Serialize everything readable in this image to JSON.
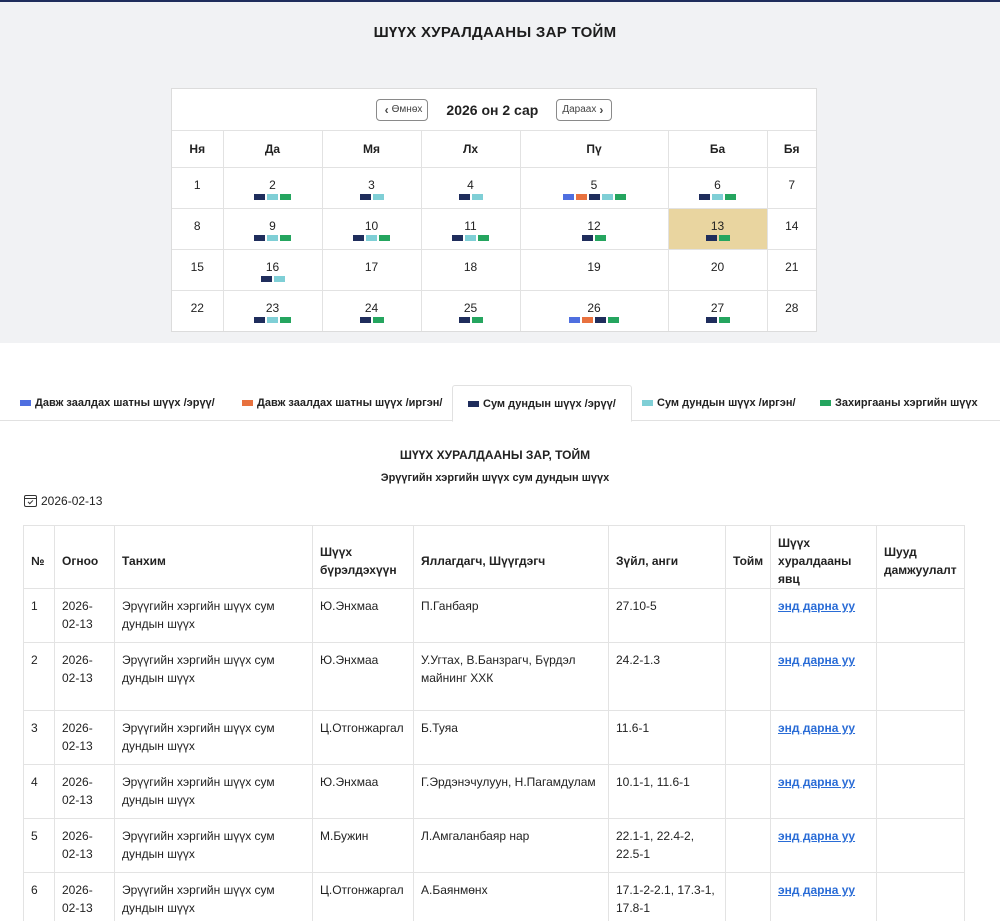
{
  "page_title": "ШҮҮХ ХУРАЛДААНЫ ЗАР ТОЙМ",
  "calendar": {
    "prev_label": "Өмнөх",
    "next_label": "Дараах",
    "month_label": "2026 он 2 сар",
    "weekdays": [
      "Ня",
      "Да",
      "Мя",
      "Лх",
      "Пү",
      "Ба",
      "Бя"
    ],
    "selected_day": "13",
    "weeks": [
      [
        {
          "d": "1",
          "m": []
        },
        {
          "d": "2",
          "m": [
            "navy",
            "teal",
            "green"
          ]
        },
        {
          "d": "3",
          "m": [
            "navy",
            "teal"
          ]
        },
        {
          "d": "4",
          "m": [
            "navy",
            "teal"
          ]
        },
        {
          "d": "5",
          "m": [
            "blue",
            "orange",
            "navy",
            "teal",
            "green"
          ]
        },
        {
          "d": "6",
          "m": [
            "navy",
            "teal",
            "green"
          ]
        },
        {
          "d": "7",
          "m": []
        }
      ],
      [
        {
          "d": "8",
          "m": []
        },
        {
          "d": "9",
          "m": [
            "navy",
            "teal",
            "green"
          ]
        },
        {
          "d": "10",
          "m": [
            "navy",
            "teal",
            "green"
          ]
        },
        {
          "d": "11",
          "m": [
            "navy",
            "teal",
            "green"
          ]
        },
        {
          "d": "12",
          "m": [
            "navy",
            "green"
          ]
        },
        {
          "d": "13",
          "m": [
            "navy",
            "green"
          ]
        },
        {
          "d": "14",
          "m": []
        }
      ],
      [
        {
          "d": "15",
          "m": []
        },
        {
          "d": "16",
          "m": [
            "navy",
            "teal"
          ]
        },
        {
          "d": "17",
          "m": []
        },
        {
          "d": "18",
          "m": []
        },
        {
          "d": "19",
          "m": []
        },
        {
          "d": "20",
          "m": []
        },
        {
          "d": "21",
          "m": []
        }
      ],
      [
        {
          "d": "22",
          "m": []
        },
        {
          "d": "23",
          "m": [
            "navy",
            "teal",
            "green"
          ]
        },
        {
          "d": "24",
          "m": [
            "navy",
            "green"
          ]
        },
        {
          "d": "25",
          "m": [
            "navy",
            "green"
          ]
        },
        {
          "d": "26",
          "m": [
            "blue",
            "orange",
            "navy",
            "green"
          ]
        },
        {
          "d": "27",
          "m": [
            "navy",
            "green"
          ]
        },
        {
          "d": "28",
          "m": []
        }
      ]
    ]
  },
  "colors": {
    "blue": "#4f6fe0",
    "orange": "#e8713e",
    "navy": "#1f2d5c",
    "teal": "#7fcfd6",
    "green": "#25a55f",
    "selected": "#e9d5a0",
    "link": "#2a6cd6"
  },
  "tabs": [
    {
      "label": "Давж заалдах шатны шүүх /эрүү/",
      "color": "blue",
      "active": false
    },
    {
      "label": "Давж заалдах шатны шүүх /иргэн/",
      "color": "orange",
      "active": false
    },
    {
      "label": "Сум дундын шүүх /эрүү/",
      "color": "navy",
      "active": true
    },
    {
      "label": "Сум дундын шүүх /иргэн/",
      "color": "teal",
      "active": false
    },
    {
      "label": "Захиргааны хэргийн шүүх",
      "color": "green",
      "active": false
    }
  ],
  "panel": {
    "title": "ШҮҮХ ХУРАЛДААНЫ ЗАР, ТОЙМ",
    "subtitle": "Эрүүгийн хэргийн шүүх сум дундын шүүх",
    "date": "2026-02-13"
  },
  "table": {
    "headers": {
      "num": "№",
      "date": "Огноо",
      "room": "Танхим",
      "panel": "Шүүх бүрэлдэхүүн",
      "parties": "Яллагдагч, Шүүгдэгч",
      "article": "Зүйл, анги",
      "summary": "Тойм",
      "progress": "Шүүх хуралдааны явц",
      "live": "Шууд дамжуулалт"
    },
    "rows": [
      {
        "num": "1",
        "date": "2026-02-13",
        "room": "Эрүүгийн хэргийн шүүх сум дундын шүүх",
        "panel": "Ю.Энхмаа",
        "parties": "П.Ганбаяр",
        "article": "27.10-5",
        "summary": "",
        "progress": "энд дарна уу",
        "live": ""
      },
      {
        "num": "2",
        "date": "2026-02-13",
        "room": "Эрүүгийн хэргийн шүүх сум дундын шүүх",
        "panel": "Ю.Энхмаа",
        "parties": "У.Угтах, В.Банзрагч, Бүрдэл майнинг ХХК",
        "article": "24.2-1.3",
        "summary": "",
        "progress": "энд дарна уу",
        "live": ""
      },
      {
        "num": "3",
        "date": "2026-02-13",
        "room": "Эрүүгийн хэргийн шүүх сум дундын шүүх",
        "panel": "Ц.Отгонжаргал",
        "parties": "Б.Туяа",
        "article": "11.6-1",
        "summary": "",
        "progress": "энд дарна уу",
        "live": ""
      },
      {
        "num": "4",
        "date": "2026-02-13",
        "room": "Эрүүгийн хэргийн шүүх сум дундын шүүх",
        "panel": "Ю.Энхмаа",
        "parties": "Г.Эрдэнэчулуун, Н.Пагамдулам",
        "article": "10.1-1, 11.6-1",
        "summary": "",
        "progress": "энд дарна уу",
        "live": ""
      },
      {
        "num": "5",
        "date": "2026-02-13",
        "room": "Эрүүгийн хэргийн шүүх сум дундын шүүх",
        "panel": "М.Бужин",
        "parties": "Л.Амгаланбаяр нар",
        "article": "22.1-1, 22.4-2, 22.5-1",
        "summary": "",
        "progress": "энд дарна уу",
        "live": ""
      },
      {
        "num": "6",
        "date": "2026-02-13",
        "room": "Эрүүгийн хэргийн шүүх сум дундын шүүх",
        "panel": "Ц.Отгонжаргал",
        "parties": "А.Баянмөнх",
        "article": "17.1-2-2.1, 17.3-1, 17.8-1",
        "summary": "",
        "progress": "энд дарна уу",
        "live": ""
      }
    ]
  }
}
